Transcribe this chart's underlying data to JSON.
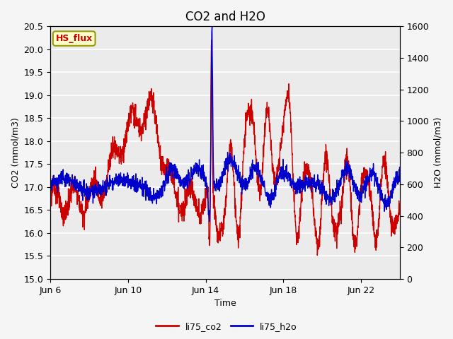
{
  "title": "CO2 and H2O",
  "xlabel": "Time",
  "ylabel_left": "CO2 (mmol/m3)",
  "ylabel_right": "H2O (mmol/m3)",
  "ylim_left": [
    15.0,
    20.5
  ],
  "ylim_right": [
    0,
    1600
  ],
  "yticks_left": [
    15.0,
    15.5,
    16.0,
    16.5,
    17.0,
    17.5,
    18.0,
    18.5,
    19.0,
    19.5,
    20.0,
    20.5
  ],
  "yticks_right": [
    0,
    200,
    400,
    600,
    800,
    1000,
    1200,
    1400,
    1600
  ],
  "xtick_labels": [
    "Jun 6",
    "Jun 10",
    "Jun 14",
    "Jun 18",
    "Jun 22"
  ],
  "xtick_positions": [
    0,
    4,
    8,
    12,
    16
  ],
  "xlim": [
    0,
    18
  ],
  "annotation_text": "HS_flux",
  "annotation_bg": "#ffffcc",
  "annotation_border": "#999900",
  "line1_color": "#cc0000",
  "line2_color": "#0000cc",
  "line1_label": "li75_co2",
  "line2_label": "li75_h2o",
  "line_width": 1.0,
  "plot_bg_color": "#ebebeb",
  "fig_bg_color": "#f5f5f5",
  "grid_color": "#ffffff",
  "title_fontsize": 12,
  "label_fontsize": 9,
  "tick_fontsize": 9,
  "legend_fontsize": 9
}
